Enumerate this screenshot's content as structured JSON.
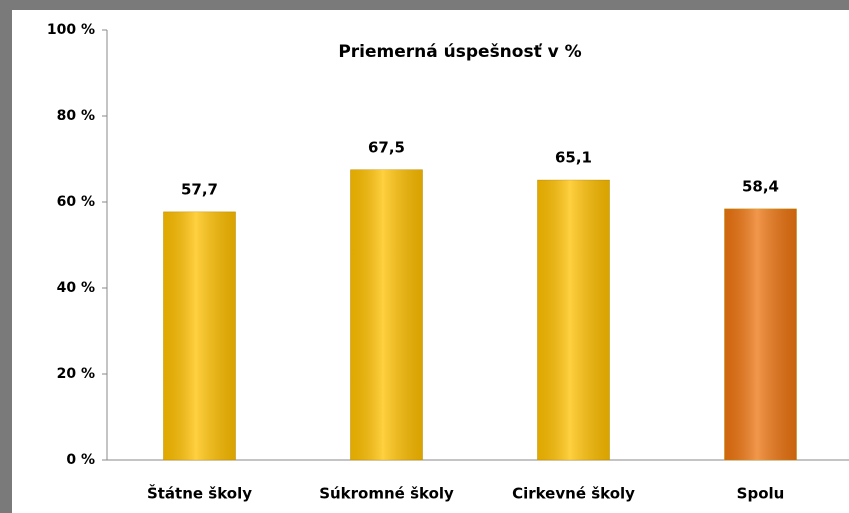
{
  "chart_data": {
    "type": "bar",
    "title": "Priemerná úspešnosť v %",
    "categories": [
      "Štátne školy",
      "Súkromné školy",
      "Cirkevné školy",
      "Spolu"
    ],
    "values": [
      57.7,
      67.5,
      65.1,
      58.4
    ],
    "value_labels": [
      "57,7",
      "67,5",
      "65,1",
      "58,4"
    ],
    "colors": [
      "#ffc000",
      "#ffc000",
      "#ffc000",
      "#ed7410"
    ],
    "ylim": [
      0,
      100
    ],
    "yticks": [
      {
        "value": 0,
        "label": "0 %"
      },
      {
        "value": 20,
        "label": "20 %"
      },
      {
        "value": 40,
        "label": "40 %"
      },
      {
        "value": 60,
        "label": "60 %"
      },
      {
        "value": 80,
        "label": "80 %"
      },
      {
        "value": 100,
        "label": "100 %"
      }
    ],
    "grid": false
  }
}
